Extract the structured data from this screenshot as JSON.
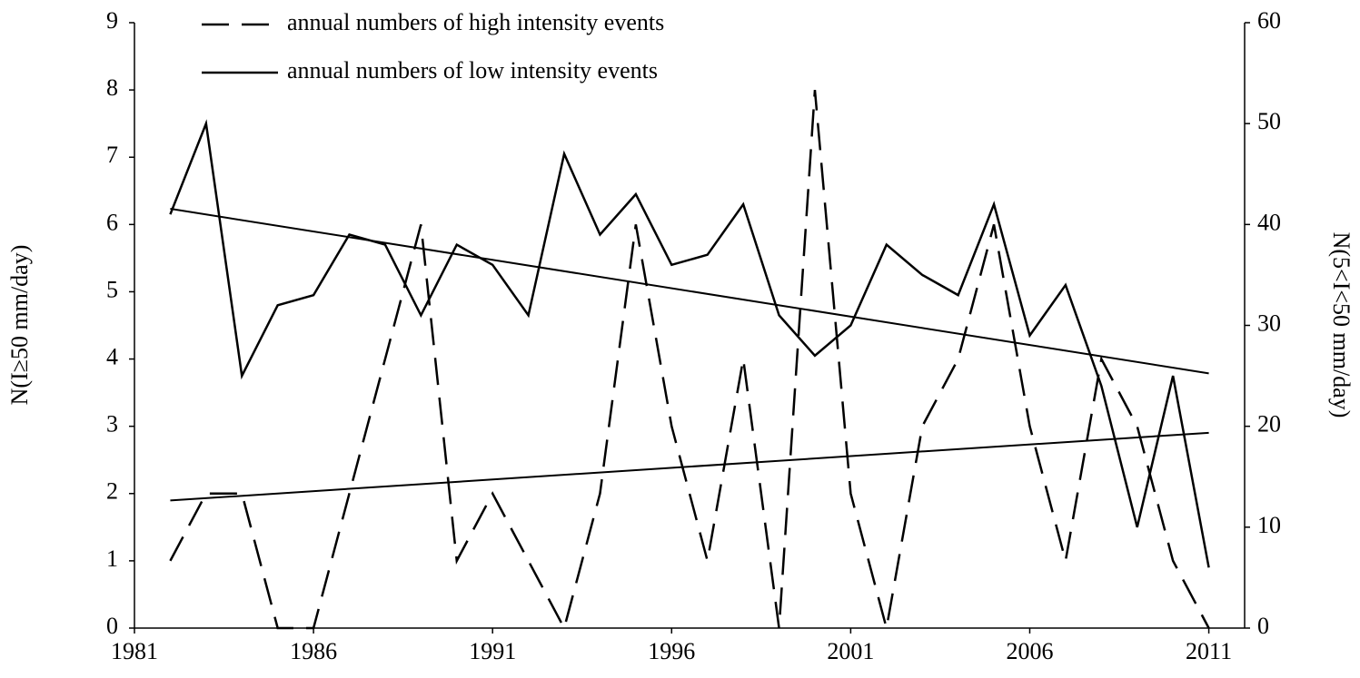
{
  "chart_data": {
    "type": "line",
    "x": [
      1982,
      1983,
      1984,
      1985,
      1986,
      1987,
      1988,
      1989,
      1990,
      1991,
      1992,
      1993,
      1994,
      1995,
      1996,
      1997,
      1998,
      1999,
      2000,
      2001,
      2002,
      2003,
      2004,
      2005,
      2006,
      2007,
      2008,
      2009,
      2010,
      2011
    ],
    "series": [
      {
        "name": "annual numbers of high intensity events",
        "color": "#000000",
        "dash": true,
        "values": [
          1,
          2,
          2,
          0,
          0,
          2,
          4,
          6,
          1,
          2,
          1,
          0,
          2,
          6,
          3,
          1,
          4,
          0,
          8,
          2,
          0,
          3,
          4,
          6,
          3,
          1,
          4,
          3,
          1,
          0
        ]
      },
      {
        "name": "annual numbers of low intensity events",
        "color": "#000000",
        "dash": false,
        "axis": "y2",
        "values": [
          41,
          50,
          25,
          32,
          33,
          39,
          38,
          31,
          38,
          36,
          31,
          47,
          39,
          43,
          36,
          37,
          42,
          31,
          27,
          30,
          38,
          35,
          33,
          42,
          29,
          34,
          24,
          10,
          25,
          6
        ]
      }
    ],
    "xlim": [
      1981,
      2012
    ],
    "xticks": [
      1981,
      1986,
      1991,
      1996,
      2001,
      2006,
      2011
    ],
    "ylim": [
      0,
      9
    ],
    "yticks": [
      0,
      1,
      2,
      3,
      4,
      5,
      6,
      7,
      8,
      9
    ],
    "y2lim": [
      0,
      60
    ],
    "y2ticks": [
      0,
      10,
      20,
      30,
      40,
      50,
      60
    ],
    "ylabel": "N(I≥50 mm/day)",
    "y2label": "N(5<I<50 mm/day)",
    "legend": "top",
    "trendline": true,
    "grid": false
  }
}
